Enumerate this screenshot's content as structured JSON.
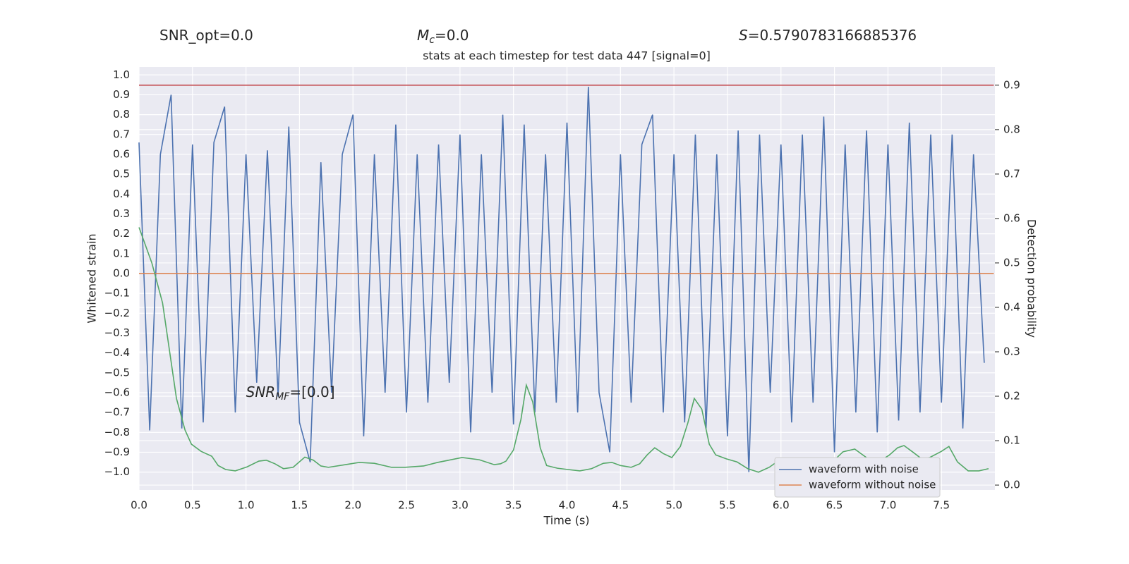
{
  "chart_data": {
    "type": "line",
    "title": "stats at each timestep for test data 447 [signal=0]",
    "xlabel": "Time (s)",
    "ylabel": "Whitened strain",
    "y2label": "Detection probability",
    "annotations": [
      {
        "parts": [
          {
            "text": "SNR_opt=0.0"
          }
        ]
      },
      {
        "parts": [
          {
            "text": "M",
            "italic": true
          },
          {
            "text": "c",
            "italic": true,
            "sub": true
          },
          {
            "text": "=0.0"
          }
        ]
      },
      {
        "parts": [
          {
            "text": "S",
            "italic": true
          },
          {
            "text": "=0.5790783166885376"
          }
        ]
      },
      {
        "parts": [
          {
            "text": "SNR",
            "italic": true
          },
          {
            "text": "MF",
            "italic": true,
            "sub": true
          },
          {
            "text": "=[0.0]"
          }
        ]
      }
    ],
    "xlim": [
      0,
      8.0
    ],
    "ylim": [
      -1.09,
      1.04
    ],
    "y2lim": [
      -0.011,
      0.941
    ],
    "xticks": [
      {
        "value": 0,
        "label": "0.0"
      },
      0.5,
      {
        "value": 1,
        "label": "1.0"
      },
      1.5,
      {
        "value": 2,
        "label": "2.0"
      },
      2.5,
      {
        "value": 3,
        "label": "3.0"
      },
      3.5,
      {
        "value": 4,
        "label": "4.0"
      },
      4.5,
      {
        "value": 5,
        "label": "5.0"
      },
      5.5,
      {
        "value": 6,
        "label": "6.0"
      },
      6.5,
      {
        "value": 7,
        "label": "7.0"
      },
      7.5
    ],
    "yticks": [
      {
        "value": 1,
        "label": "1.0"
      },
      0.9,
      0.8,
      0.7,
      0.6,
      0.5,
      0.4,
      0.3,
      0.2,
      0.1,
      {
        "value": 0,
        "label": "0.0"
      },
      {
        "value": -0.1,
        "label": "−0.1"
      },
      {
        "value": -0.2,
        "label": "−0.2"
      },
      {
        "value": -0.3,
        "label": "−0.3"
      },
      {
        "value": -0.4,
        "label": "−0.4"
      },
      {
        "value": -0.5,
        "label": "−0.5"
      },
      {
        "value": -0.6,
        "label": "−0.6"
      },
      {
        "value": -0.7,
        "label": "−0.7"
      },
      {
        "value": -0.8,
        "label": "−0.8"
      },
      {
        "value": -0.9,
        "label": "−0.9"
      },
      {
        "value": -1,
        "label": "−1.0"
      }
    ],
    "y2ticks": [
      {
        "value": 0,
        "label": "0.0"
      },
      0.1,
      0.2,
      0.3,
      0.4,
      0.5,
      0.6,
      0.7,
      0.8,
      0.9
    ],
    "grid": true,
    "legend": "lower right",
    "series": [
      {
        "name": "waveform with noise",
        "color": "#4c72b0",
        "x": [
          0,
          0.1,
          0.2,
          0.3,
          0.4,
          0.5,
          0.6,
          0.7,
          0.8,
          0.9,
          1.0,
          1.1,
          1.2,
          1.3,
          1.4,
          1.5,
          1.6,
          1.7,
          1.8,
          1.9,
          2.0,
          2.1,
          2.2,
          2.3,
          2.4,
          2.5,
          2.6,
          2.7,
          2.8,
          2.9,
          3.0,
          3.1,
          3.2,
          3.3,
          3.4,
          3.5,
          3.6,
          3.7,
          3.8,
          3.9,
          4.0,
          4.1,
          4.2,
          4.3,
          4.4,
          4.5,
          4.6,
          4.7,
          4.8,
          4.9,
          5.0,
          5.1,
          5.2,
          5.3,
          5.4,
          5.5,
          5.6,
          5.7,
          5.8,
          5.9,
          6.0,
          6.1,
          6.2,
          6.3,
          6.4,
          6.5,
          6.6,
          6.7,
          6.8,
          6.9,
          7.0,
          7.1,
          7.2,
          7.3,
          7.4,
          7.5,
          7.6,
          7.7,
          7.8,
          7.9
        ],
        "values": [
          0.66,
          -0.79,
          0.6,
          0.9,
          -0.78,
          0.65,
          -0.75,
          0.66,
          0.84,
          -0.7,
          0.6,
          -0.55,
          0.62,
          -0.62,
          0.74,
          -0.75,
          -0.95,
          0.56,
          -0.6,
          0.6,
          0.8,
          -0.82,
          0.6,
          -0.6,
          0.75,
          -0.7,
          0.6,
          -0.65,
          0.65,
          -0.55,
          0.7,
          -0.8,
          0.6,
          -0.6,
          0.8,
          -0.76,
          0.75,
          -0.7,
          0.6,
          -0.65,
          0.76,
          -0.7,
          0.94,
          -0.6,
          -0.9,
          0.6,
          -0.65,
          0.65,
          0.8,
          -0.7,
          0.6,
          -0.75,
          0.7,
          -0.78,
          0.6,
          -0.82,
          0.72,
          -1.0,
          0.7,
          -0.6,
          0.65,
          -0.75,
          0.7,
          -0.65,
          0.79,
          -0.9,
          0.65,
          -0.7,
          0.72,
          -0.8,
          0.65,
          -0.74,
          0.76,
          -0.7,
          0.7,
          -0.65,
          0.7,
          -0.78,
          0.6,
          -0.45
        ]
      },
      {
        "name": "waveform without noise",
        "color": "#dd8452",
        "x": [
          0,
          7.99
        ],
        "values": [
          0,
          0
        ]
      },
      {
        "color": "#c44e52",
        "axis": "y2",
        "x": [
          0,
          7.99
        ],
        "values": [
          0.9,
          0.9
        ]
      },
      {
        "color": "#55a868",
        "axis": "y2",
        "x": [
          0,
          0.12,
          0.22,
          0.35,
          0.43,
          0.49,
          0.58,
          0.68,
          0.74,
          0.81,
          0.9,
          1.01,
          1.12,
          1.19,
          1.27,
          1.35,
          1.44,
          1.55,
          1.63,
          1.7,
          1.77,
          1.93,
          2.06,
          2.2,
          2.36,
          2.49,
          2.66,
          2.79,
          3.02,
          3.18,
          3.32,
          3.38,
          3.43,
          3.5,
          3.57,
          3.62,
          3.68,
          3.75,
          3.81,
          3.91,
          4.01,
          4.12,
          4.23,
          4.34,
          4.42,
          4.5,
          4.6,
          4.68,
          4.75,
          4.82,
          4.9,
          4.98,
          5.06,
          5.13,
          5.19,
          5.26,
          5.33,
          5.39,
          5.49,
          5.59,
          5.69,
          5.79,
          5.89,
          5.99,
          6.07,
          6.15,
          6.25,
          6.38,
          6.48,
          6.58,
          6.69,
          6.81,
          6.91,
          7.01,
          7.09,
          7.15,
          7.24,
          7.31,
          7.39,
          7.5,
          7.57,
          7.65,
          7.75,
          7.85,
          7.94
        ],
        "values": [
          0.58,
          0.5,
          0.41,
          0.195,
          0.124,
          0.092,
          0.076,
          0.065,
          0.044,
          0.035,
          0.032,
          0.041,
          0.054,
          0.056,
          0.048,
          0.037,
          0.04,
          0.063,
          0.056,
          0.043,
          0.04,
          0.046,
          0.051,
          0.049,
          0.04,
          0.04,
          0.043,
          0.051,
          0.062,
          0.057,
          0.046,
          0.048,
          0.054,
          0.079,
          0.148,
          0.225,
          0.187,
          0.084,
          0.044,
          0.038,
          0.035,
          0.032,
          0.037,
          0.049,
          0.051,
          0.044,
          0.04,
          0.048,
          0.068,
          0.084,
          0.071,
          0.062,
          0.087,
          0.14,
          0.195,
          0.171,
          0.092,
          0.068,
          0.059,
          0.052,
          0.037,
          0.029,
          0.04,
          0.057,
          0.06,
          0.054,
          0.048,
          0.044,
          0.052,
          0.075,
          0.081,
          0.06,
          0.052,
          0.067,
          0.084,
          0.089,
          0.073,
          0.06,
          0.062,
          0.076,
          0.087,
          0.052,
          0.032,
          0.032,
          0.037
        ]
      }
    ]
  }
}
